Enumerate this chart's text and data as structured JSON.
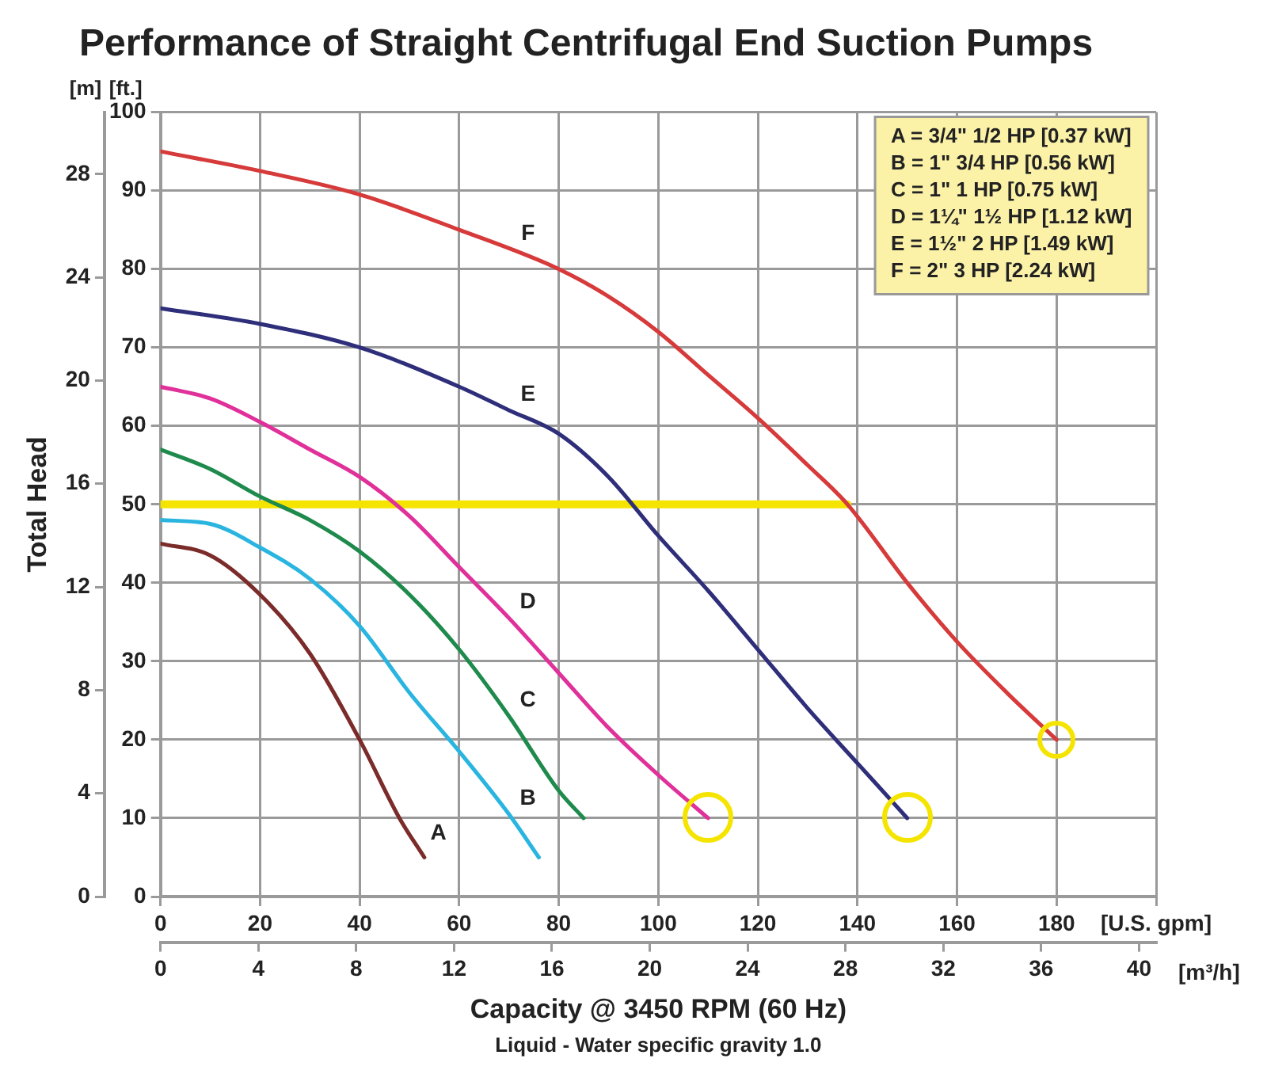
{
  "chart_data": {
    "type": "line",
    "title": "Performance of Straight Centrifugal End Suction Pumps",
    "xlabel": "Capacity @ 3450 RPM (60 Hz)",
    "x2label": "[m³/h]",
    "y2label": "Total Head",
    "annotations": [
      "[m]",
      "[ft.]",
      "Liquid - Water specific gravity 1.0",
      "A = 3/4\" 1/2 HP [0.37 kW]",
      "B = 1\" 3/4 HP [0.56 kW]",
      "C = 1\" 1 HP [0.75 kW]",
      "D = 1¼\" 1½ HP [1.12 kW]",
      "E = 1½\" 2 HP [1.49 kW]",
      "F = 2\" 3 HP [2.24 kW]"
    ],
    "xlim": [
      0,
      200
    ],
    "xticks": [
      0,
      20,
      40,
      60,
      80,
      100,
      120,
      140,
      160,
      180,
      {
        "value": 200,
        "label": "[U.S. gpm]"
      }
    ],
    "x2lim": [
      0,
      40.7
    ],
    "x2ticks": [
      0,
      4,
      8,
      12,
      16,
      20,
      24,
      28,
      32,
      36,
      40
    ],
    "ylim": [
      0,
      100
    ],
    "yticks": [
      0,
      10,
      20,
      30,
      40,
      50,
      60,
      70,
      80,
      90,
      100
    ],
    "y2lim": [
      0,
      30.4
    ],
    "y2ticks": [
      0,
      4,
      8,
      12,
      16,
      20,
      24,
      28
    ],
    "grid": true,
    "legend": false,
    "marker": "none",
    "line_style": "solid",
    "series": [
      {
        "name": "A",
        "color": "#7b2c2a",
        "x": [
          0,
          10,
          20,
          30,
          40,
          48,
          53
        ],
        "values": [
          45,
          43.5,
          38.5,
          31,
          20,
          10,
          5
        ]
      },
      {
        "name": "B",
        "color": "#29b5e0",
        "x": [
          0,
          10,
          20,
          30,
          40,
          50,
          60,
          70,
          76
        ],
        "values": [
          48,
          47.5,
          44.5,
          40.5,
          34.5,
          26,
          18.5,
          10.5,
          5
        ]
      },
      {
        "name": "C",
        "color": "#1e8a4c",
        "x": [
          0,
          10,
          20,
          30,
          40,
          50,
          60,
          70,
          80,
          85
        ],
        "values": [
          57,
          54.5,
          51,
          48,
          44,
          38.5,
          31.5,
          23,
          13.5,
          10
        ]
      },
      {
        "name": "D",
        "color": "#e0309a",
        "x": [
          0,
          10,
          20,
          30,
          40,
          50,
          60,
          70,
          80,
          90,
          100,
          110
        ],
        "values": [
          65,
          63.5,
          60.5,
          57,
          53.5,
          48.5,
          42,
          35.5,
          28.5,
          21.5,
          15.5,
          10
        ]
      },
      {
        "name": "E",
        "color": "#2e2e7a",
        "x": [
          0,
          20,
          40,
          60,
          70,
          80,
          90,
          100,
          110,
          120,
          130,
          140,
          150
        ],
        "values": [
          75,
          73,
          70,
          65,
          62,
          59,
          53.5,
          46,
          39,
          31.5,
          24,
          17,
          10
        ]
      },
      {
        "name": "F",
        "color": "#d63a3a",
        "x": [
          0,
          20,
          40,
          60,
          80,
          90,
          100,
          110,
          120,
          130,
          138,
          150,
          160,
          170,
          180
        ],
        "values": [
          95,
          92.5,
          89.5,
          85,
          80,
          76.5,
          72,
          66.5,
          61,
          55,
          50,
          40,
          32.5,
          26,
          20
        ]
      },
      {
        "color": "#f5e400",
        "x": [
          0,
          138
        ],
        "values": [
          50,
          50
        ]
      }
    ]
  }
}
